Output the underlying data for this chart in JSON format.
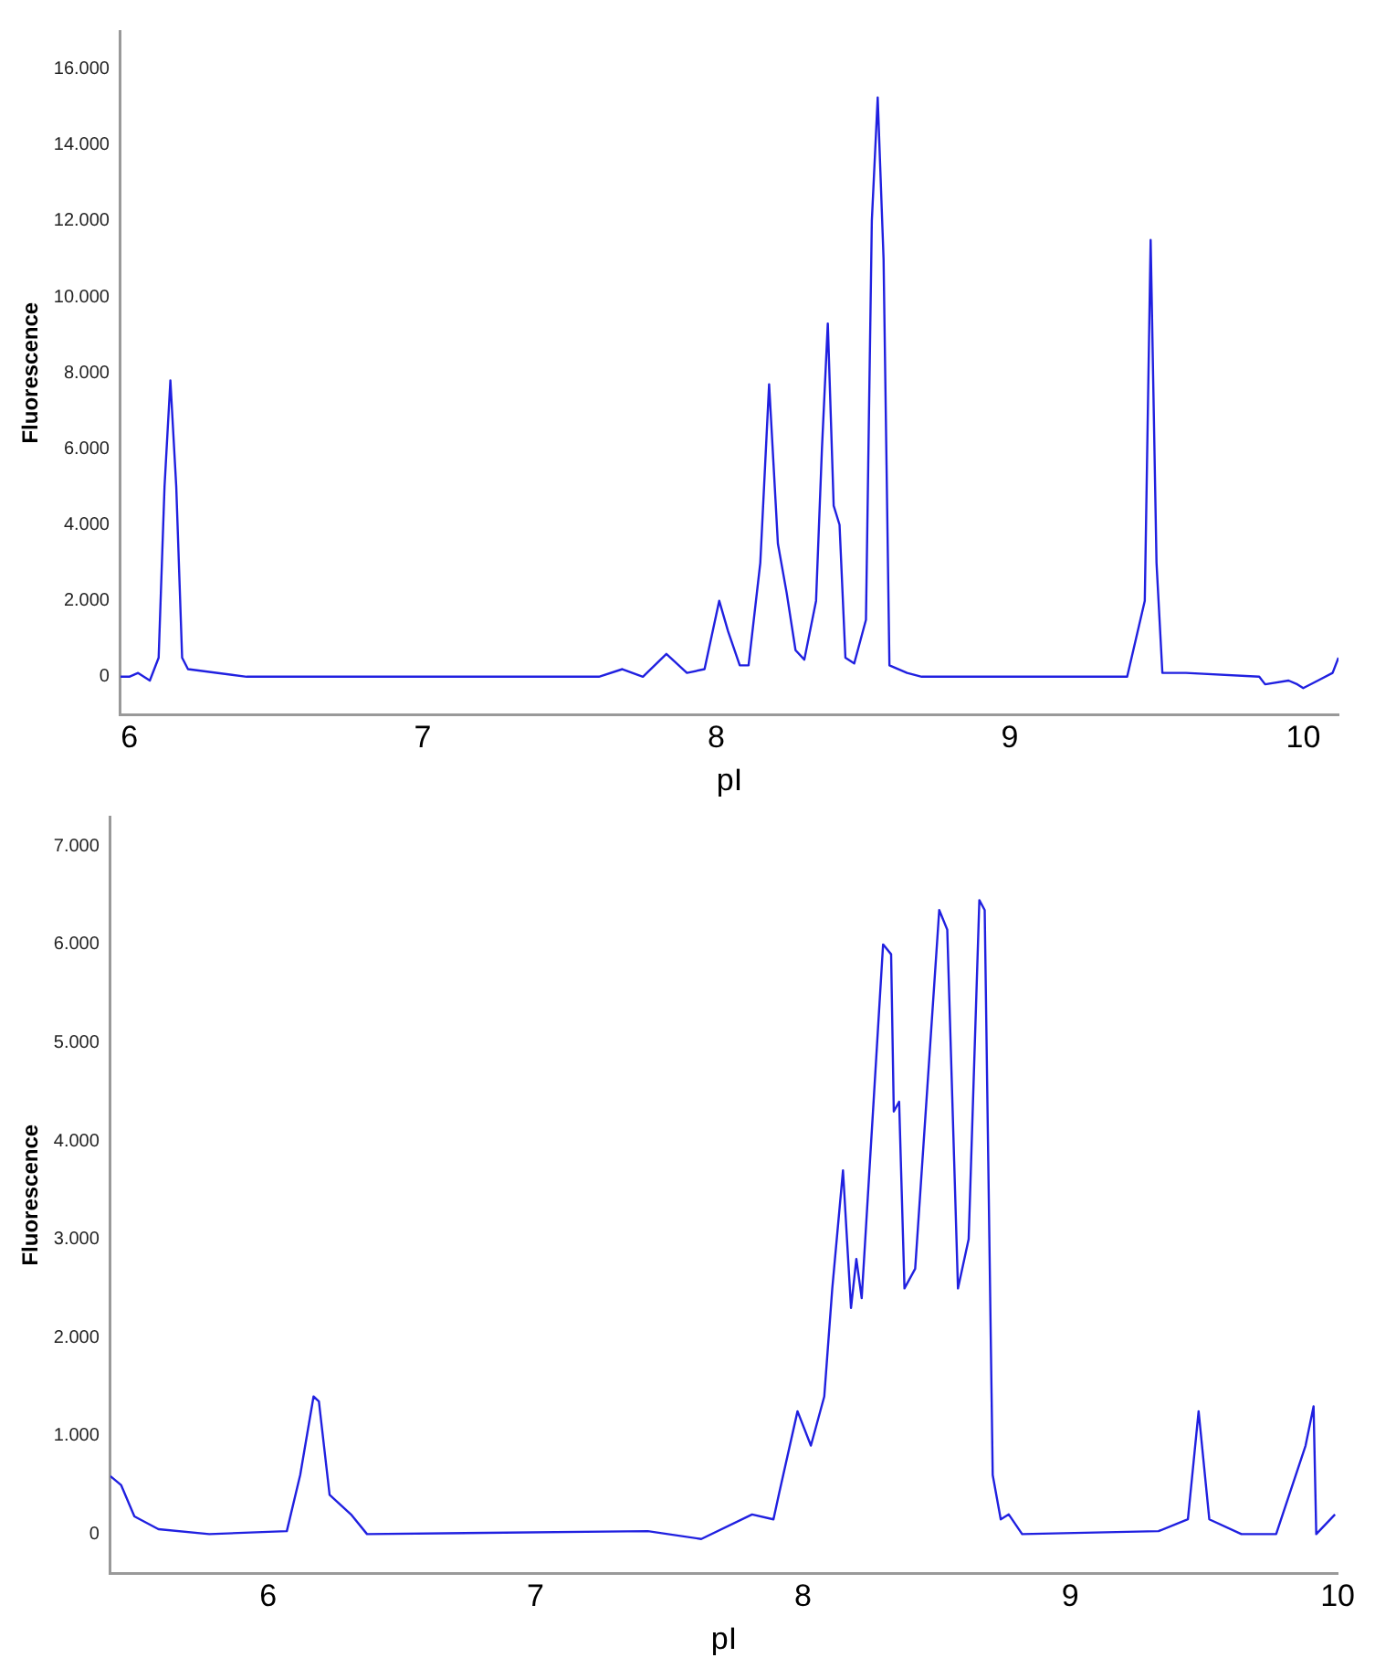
{
  "chart_data": [
    {
      "type": "line",
      "xlabel": "pI",
      "ylabel": "Fluorescence",
      "color": "#2020e0",
      "xlim": [
        5.97,
        10.12
      ],
      "ylim": [
        -1000,
        17000
      ],
      "xticks": [
        6,
        7,
        8,
        9,
        10
      ],
      "yticks": [
        0,
        {
          "value": 2000,
          "label": "2.000"
        },
        {
          "value": 4000,
          "label": "4.000"
        },
        {
          "value": 6000,
          "label": "6.000"
        },
        {
          "value": 8000,
          "label": "8.000"
        },
        {
          "value": 10000,
          "label": "10.000"
        },
        {
          "value": 12000,
          "label": "12.000"
        },
        {
          "value": 14000,
          "label": "14.000"
        },
        {
          "value": 16000,
          "label": "16.000"
        }
      ],
      "x": [
        5.97,
        6.0,
        6.03,
        6.07,
        6.1,
        6.12,
        6.14,
        6.16,
        6.18,
        6.2,
        6.4,
        7.6,
        7.68,
        7.75,
        7.83,
        7.9,
        7.96,
        8.01,
        8.04,
        8.08,
        8.11,
        8.15,
        8.18,
        8.21,
        8.24,
        8.27,
        8.3,
        8.34,
        8.36,
        8.38,
        8.4,
        8.42,
        8.44,
        8.47,
        8.51,
        8.53,
        8.55,
        8.57,
        8.59,
        8.65,
        8.7,
        9.4,
        9.46,
        9.48,
        9.5,
        9.52,
        9.6,
        9.85,
        9.87,
        9.95,
        9.98,
        10.0,
        10.05,
        10.1,
        10.12
      ],
      "values": [
        0,
        0,
        100,
        -100,
        500,
        5000,
        7800,
        5000,
        500,
        200,
        0,
        0,
        200,
        0,
        600,
        100,
        200,
        2000,
        1200,
        300,
        300,
        3000,
        7700,
        3500,
        2200,
        700,
        450,
        2000,
        6000,
        9300,
        4500,
        4000,
        500,
        350,
        1500,
        12000,
        15250,
        11000,
        300,
        100,
        0,
        0,
        2000,
        11500,
        3000,
        100,
        100,
        0,
        -200,
        -100,
        -200,
        -300,
        -100,
        100,
        500
      ]
    },
    {
      "type": "line",
      "xlabel": "pI",
      "ylabel": "Fluorescence",
      "color": "#2020e0",
      "xlim": [
        5.41,
        10.0
      ],
      "ylim": [
        -400,
        7300
      ],
      "xticks": [
        6,
        7,
        8,
        9,
        10
      ],
      "yticks": [
        0,
        {
          "value": 1000,
          "label": "1.000"
        },
        {
          "value": 2000,
          "label": "2.000"
        },
        {
          "value": 3000,
          "label": "3.000"
        },
        {
          "value": 4000,
          "label": "4.000"
        },
        {
          "value": 5000,
          "label": "5.000"
        },
        {
          "value": 6000,
          "label": "6.000"
        },
        {
          "value": 7000,
          "label": "7.000"
        }
      ],
      "x": [
        5.41,
        5.45,
        5.5,
        5.59,
        5.78,
        6.07,
        6.12,
        6.17,
        6.19,
        6.23,
        6.31,
        6.37,
        7.42,
        7.62,
        7.81,
        7.89,
        7.91,
        7.98,
        8.03,
        8.08,
        8.11,
        8.15,
        8.18,
        8.2,
        8.22,
        8.3,
        8.33,
        8.34,
        8.36,
        8.38,
        8.42,
        8.51,
        8.54,
        8.58,
        8.62,
        8.66,
        8.68,
        8.71,
        8.74,
        8.77,
        8.82,
        9.33,
        9.44,
        9.48,
        9.52,
        9.64,
        9.77,
        9.88,
        9.91,
        9.92,
        9.99
      ],
      "values": [
        590,
        500,
        180,
        50,
        0,
        30,
        600,
        1400,
        1350,
        400,
        200,
        0,
        30,
        -50,
        200,
        150,
        400,
        1250,
        900,
        1400,
        2500,
        3700,
        2300,
        2800,
        2400,
        6000,
        5900,
        4300,
        4400,
        2500,
        2700,
        6350,
        6150,
        2500,
        3000,
        6450,
        6350,
        600,
        150,
        200,
        0,
        30,
        150,
        1250,
        150,
        0,
        0,
        900,
        1300,
        0,
        200
      ]
    }
  ]
}
